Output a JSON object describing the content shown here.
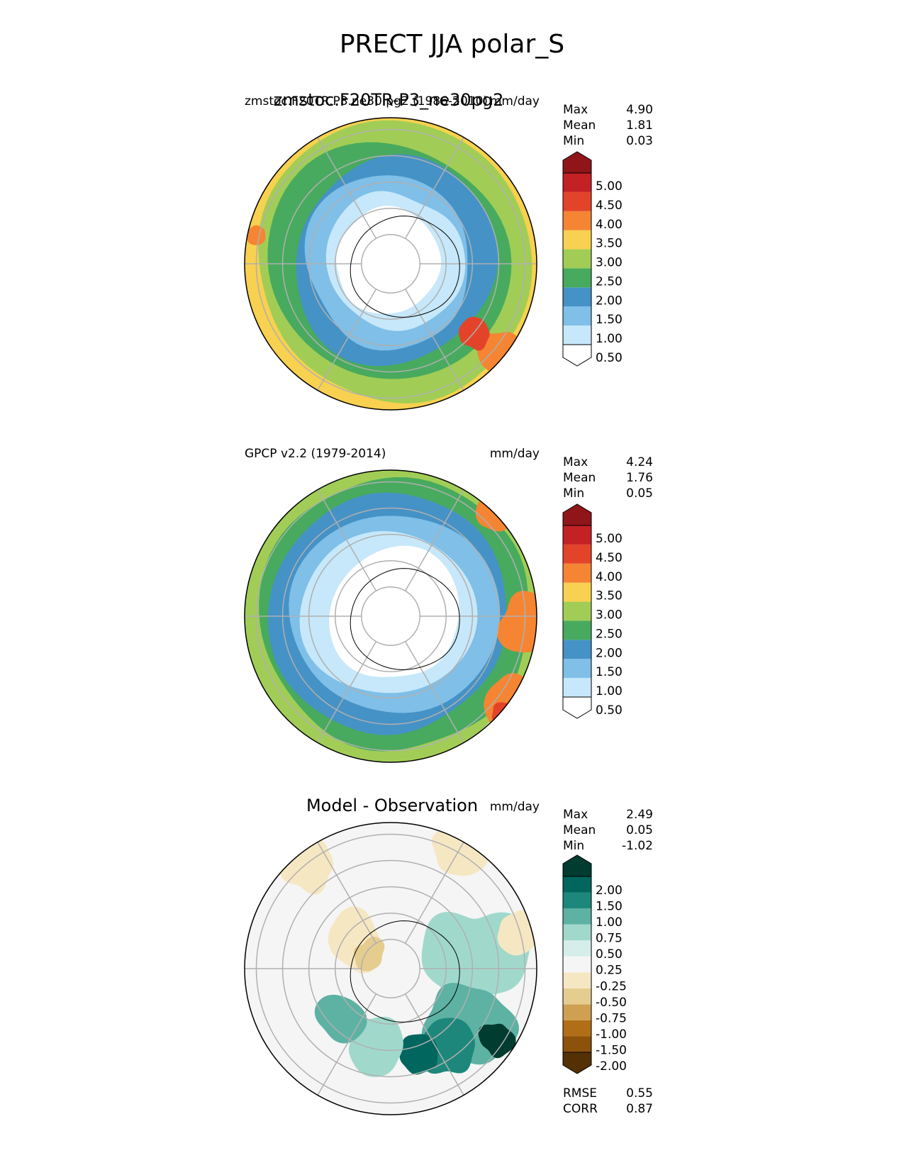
{
  "title": "PRECT JJA polar_S",
  "colors": {
    "seq": [
      "#ffffff",
      "#c6e8fa",
      "#7fbfe8",
      "#4592c6",
      "#48aa5e",
      "#a1cd56",
      "#f7d14f",
      "#f58533",
      "#e34429",
      "#c42125",
      "#8f1519"
    ],
    "div": [
      "#543005",
      "#8c510a",
      "#b06f17",
      "#cfa052",
      "#e5cd8f",
      "#f6e7c3",
      "#f5f5f5",
      "#d5eeea",
      "#a0d9cc",
      "#5db2a3",
      "#1e877b",
      "#01665e",
      "#003c30"
    ]
  },
  "chart_data": [
    {
      "type": "heatmap",
      "left_title": "zmstoc.F20TR.P3.ne30.pg2 (1986-2010)",
      "center_title": "zmstoc.F20TR-P3_ne30pg2",
      "units": "mm/day",
      "stats": {
        "max": "4.90",
        "mean": "1.81",
        "min": "0.03"
      },
      "max_label": "Max",
      "mean_label": "Mean",
      "min_label": "Min",
      "colorbar_ticks": [
        "5.00",
        "4.50",
        "4.00",
        "3.50",
        "3.00",
        "2.50",
        "2.00",
        "1.50",
        "1.00",
        "0.50"
      ]
    },
    {
      "type": "heatmap",
      "left_title": "GPCP v2.2 (1979-2014)",
      "units": "mm/day",
      "stats": {
        "max": "4.24",
        "mean": "1.76",
        "min": "0.05"
      },
      "max_label": "Max",
      "mean_label": "Mean",
      "min_label": "Min",
      "colorbar_ticks": [
        "5.00",
        "4.50",
        "4.00",
        "3.50",
        "3.00",
        "2.50",
        "2.00",
        "1.50",
        "1.00",
        "0.50"
      ]
    },
    {
      "type": "heatmap",
      "center_title": "Model - Observation",
      "units": "mm/day",
      "stats": {
        "max": "2.49",
        "mean": "0.05",
        "min": "-1.02"
      },
      "max_label": "Max",
      "mean_label": "Mean",
      "min_label": "Min",
      "colorbar_ticks": [
        "2.00",
        "1.50",
        "1.00",
        "0.75",
        "0.50",
        "0.25",
        "-0.25",
        "-0.50",
        "-0.75",
        "-1.00",
        "-1.50",
        "-2.00"
      ],
      "rmse_label": "RMSE",
      "rmse": "0.55",
      "corr_label": "CORR",
      "corr": "0.87"
    }
  ]
}
